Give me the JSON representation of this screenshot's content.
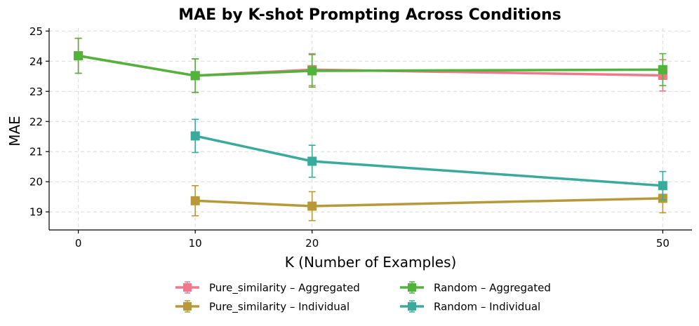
{
  "chart_data": {
    "type": "line",
    "title": "MAE by K-shot Prompting Across Conditions",
    "xlabel": "K (Number of Examples)",
    "ylabel": "MAE",
    "xlim": [
      -2.5,
      52.5
    ],
    "ylim": [
      18.4,
      25.1
    ],
    "xticks": [
      0,
      10,
      20,
      50
    ],
    "yticks": [
      19,
      20,
      21,
      22,
      23,
      24,
      25
    ],
    "grid": true,
    "legend_position": "bottom",
    "series": [
      {
        "name": "Pure_similarity – Aggregated",
        "color": "#f0788a",
        "points": [
          {
            "x": 0,
            "y": 24.18,
            "err": 0.58
          },
          {
            "x": 10,
            "y": 23.52,
            "err": 0.55
          },
          {
            "x": 20,
            "y": 23.72,
            "err": 0.53
          },
          {
            "x": 50,
            "y": 23.53,
            "err": 0.52
          }
        ]
      },
      {
        "name": "Pure_similarity – Individual",
        "color": "#b8993a",
        "points": [
          {
            "x": 10,
            "y": 19.37,
            "err": 0.5
          },
          {
            "x": 20,
            "y": 19.19,
            "err": 0.48
          },
          {
            "x": 50,
            "y": 19.45,
            "err": 0.48
          }
        ]
      },
      {
        "name": "Random – Aggregated",
        "color": "#52b33a",
        "points": [
          {
            "x": 0,
            "y": 24.18,
            "err": 0.58
          },
          {
            "x": 10,
            "y": 23.52,
            "err": 0.56
          },
          {
            "x": 20,
            "y": 23.68,
            "err": 0.54
          },
          {
            "x": 50,
            "y": 23.72,
            "err": 0.53
          }
        ]
      },
      {
        "name": "Random – Individual",
        "color": "#3aaa9c",
        "points": [
          {
            "x": 10,
            "y": 21.52,
            "err": 0.55
          },
          {
            "x": 20,
            "y": 20.68,
            "err": 0.53
          },
          {
            "x": 50,
            "y": 19.87,
            "err": 0.47
          }
        ]
      }
    ]
  }
}
